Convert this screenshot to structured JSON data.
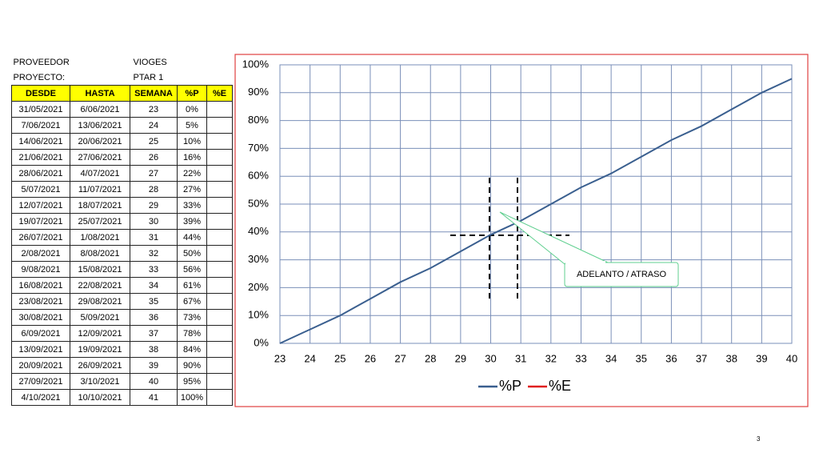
{
  "header": {
    "rows": [
      [
        "PROVEEDOR",
        "VIOGES"
      ],
      [
        "PROYECTO:",
        "PTAR 1"
      ]
    ]
  },
  "table": {
    "columns": [
      "DESDE",
      "HASTA",
      "SEMANA",
      "%P",
      "%E"
    ],
    "rows": [
      [
        "31/05/2021",
        "6/06/2021",
        23,
        "0%"
      ],
      [
        "7/06/2021",
        "13/06/2021",
        24,
        "5%"
      ],
      [
        "14/06/2021",
        "20/06/2021",
        25,
        "10%"
      ],
      [
        "21/06/2021",
        "27/06/2021",
        26,
        "16%"
      ],
      [
        "28/06/2021",
        "4/07/2021",
        27,
        "22%"
      ],
      [
        "5/07/2021",
        "11/07/2021",
        28,
        "27%"
      ],
      [
        "12/07/2021",
        "18/07/2021",
        29,
        "33%"
      ],
      [
        "19/07/2021",
        "25/07/2021",
        30,
        "39%"
      ],
      [
        "26/07/2021",
        "1/08/2021",
        31,
        "44%"
      ],
      [
        "2/08/2021",
        "8/08/2021",
        32,
        "50%"
      ],
      [
        "9/08/2021",
        "15/08/2021",
        33,
        "56%"
      ],
      [
        "16/08/2021",
        "22/08/2021",
        34,
        "61%"
      ],
      [
        "23/08/2021",
        "29/08/2021",
        35,
        "67%"
      ],
      [
        "30/08/2021",
        "5/09/2021",
        36,
        "73%"
      ],
      [
        "6/09/2021",
        "12/09/2021",
        37,
        "78%"
      ],
      [
        "13/09/2021",
        "19/09/2021",
        38,
        "84%"
      ],
      [
        "20/09/2021",
        "26/09/2021",
        39,
        "90%"
      ],
      [
        "27/09/2021",
        "3/10/2021",
        40,
        "95%"
      ],
      [
        "4/10/2021",
        "10/10/2021",
        41,
        "100%"
      ]
    ]
  },
  "chart_data": {
    "type": "line",
    "x": [
      23,
      24,
      25,
      26,
      27,
      28,
      29,
      30,
      31,
      32,
      33,
      34,
      35,
      36,
      37,
      38,
      39,
      40
    ],
    "series": [
      {
        "name": "%P",
        "color": "#3a5f8f",
        "values": [
          0,
          5,
          10,
          16,
          22,
          27,
          33,
          39,
          44,
          50,
          56,
          61,
          67,
          73,
          78,
          84,
          90,
          95
        ]
      },
      {
        "name": "%E",
        "color": "#e02020",
        "values": [
          null,
          null,
          null,
          null,
          null,
          null,
          null,
          null,
          null,
          null,
          null,
          null,
          null,
          null,
          null,
          null,
          null,
          null
        ]
      }
    ],
    "xlim": [
      23,
      40
    ],
    "xticks": [
      23,
      24,
      25,
      26,
      27,
      28,
      29,
      30,
      31,
      32,
      33,
      34,
      35,
      36,
      37,
      38,
      39,
      40
    ],
    "ylim": [
      0,
      100
    ],
    "yticks": [
      {
        "value": 0,
        "label": "0%"
      },
      {
        "value": 10,
        "label": "10%"
      },
      {
        "value": 20,
        "label": "20%"
      },
      {
        "value": 30,
        "label": "30%"
      },
      {
        "value": 40,
        "label": "40%"
      },
      {
        "value": 50,
        "label": "50%"
      },
      {
        "value": 60,
        "label": "60%"
      },
      {
        "value": 70,
        "label": "70%"
      },
      {
        "value": 80,
        "label": "80%"
      },
      {
        "value": 90,
        "label": "90%"
      },
      {
        "value": 100,
        "label": "100%"
      }
    ],
    "grid": true,
    "legend": "bottom",
    "annotation": "ADELANTO / ATRASO"
  },
  "page_number": "3"
}
